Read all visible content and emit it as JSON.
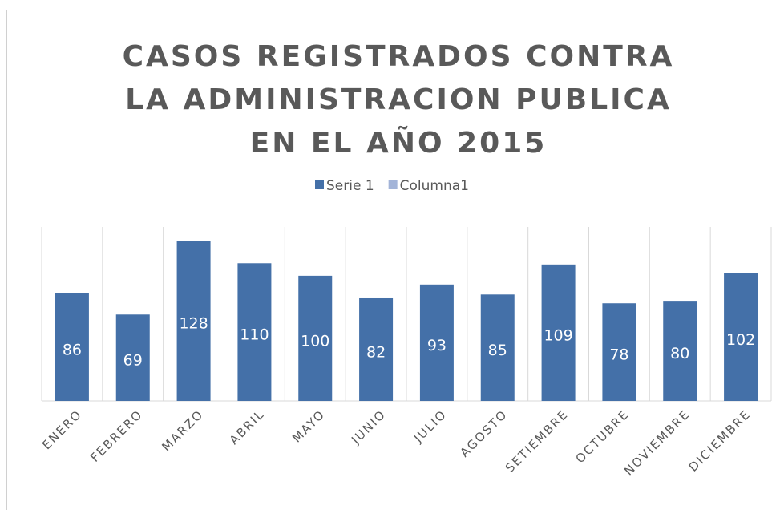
{
  "chart_data": {
    "type": "bar",
    "title": "CASOS REGISTRADOS CONTRA LA ADMINISTRACION PUBLICA EN EL AÑO 2015",
    "categories": [
      "ENERO",
      "FEBRERO",
      "MARZO",
      "ABRIL",
      "MAYO",
      "JUNIO",
      "JULIO",
      "AGOSTO",
      "SETIEMBRE",
      "OCTUBRE",
      "NOVIEMBRE",
      "DICIEMBRE"
    ],
    "series": [
      {
        "name": "Serie 1",
        "color": "#4470a8",
        "values": [
          86,
          69,
          128,
          110,
          100,
          82,
          93,
          85,
          109,
          78,
          80,
          102
        ]
      },
      {
        "name": "Columna1",
        "color": "#a3b4d8",
        "values": [
          null,
          null,
          null,
          null,
          null,
          null,
          null,
          null,
          null,
          null,
          null,
          null
        ]
      }
    ],
    "ylim": [
      0,
      139
    ],
    "grid": true,
    "legend": "top"
  }
}
